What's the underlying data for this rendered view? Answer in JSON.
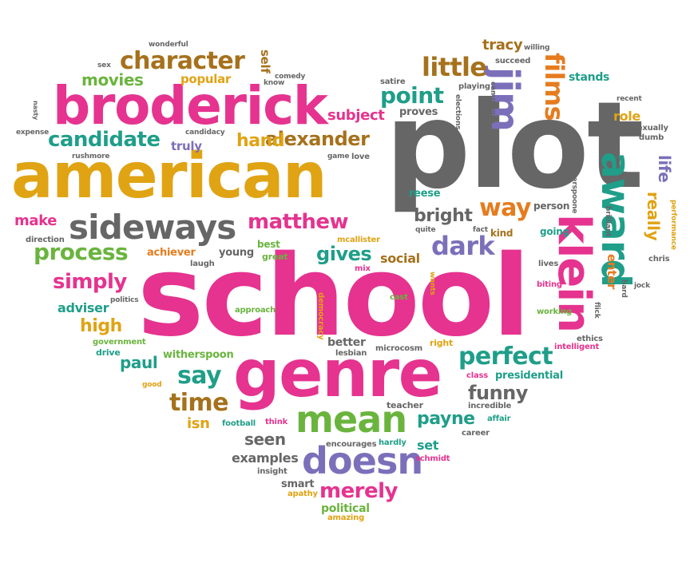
{
  "palette": {
    "pink": "#e5338f",
    "gold": "#e0a313",
    "gray": "#666666",
    "teal": "#1f9e89",
    "green": "#6ab43e",
    "purple": "#7c6fba",
    "orange": "#e57c1e",
    "brown": "#a6711c"
  },
  "words": [
    "plot",
    "school",
    "american",
    "genre",
    "broderick",
    "klein",
    "award",
    "jim",
    "sideways",
    "mean",
    "doesn",
    "character",
    "little",
    "matthew",
    "process",
    "candidate",
    "alexander",
    "perfect",
    "films",
    "dark",
    "way",
    "point",
    "time",
    "say",
    "funny",
    "simply",
    "merely",
    "movies",
    "gives",
    "payne",
    "really",
    "subject",
    "hand",
    "bright",
    "high",
    "paul",
    "seen",
    "examples",
    "isn",
    "tracy",
    "stands",
    "make",
    "adviser",
    "popular",
    "truly",
    "presidential",
    "life",
    "role",
    "social",
    "set",
    "political",
    "smart",
    "better",
    "proves",
    "reese",
    "person",
    "achiever",
    "young",
    "kind",
    "going",
    "enter",
    "self",
    "teacher",
    "football",
    "best",
    "great",
    "laugh",
    "direction",
    "mcallister",
    "mix",
    "witherspoon",
    "government",
    "drive",
    "approach",
    "democracy",
    "cast",
    "lesbian",
    "microcosm",
    "right",
    "class",
    "incredible",
    "affair",
    "career",
    "encourages",
    "hardly",
    "schmidt",
    "insight",
    "apathy",
    "amazing",
    "think",
    "good",
    "wants",
    "ethics",
    "intelligent",
    "working",
    "biting",
    "lives",
    "chris",
    "jock",
    "brilliant",
    "hard",
    "flick",
    "sexually",
    "dumb",
    "recent",
    "performance",
    "satire",
    "playing",
    "elections",
    "campaigns",
    "succeed",
    "willing",
    "wonderful",
    "sex",
    "rushmore",
    "comedy",
    "know",
    "candidacy",
    "game",
    "love",
    "nasty",
    "expense",
    "quite",
    "fact",
    "politics",
    "witherspoone"
  ]
}
